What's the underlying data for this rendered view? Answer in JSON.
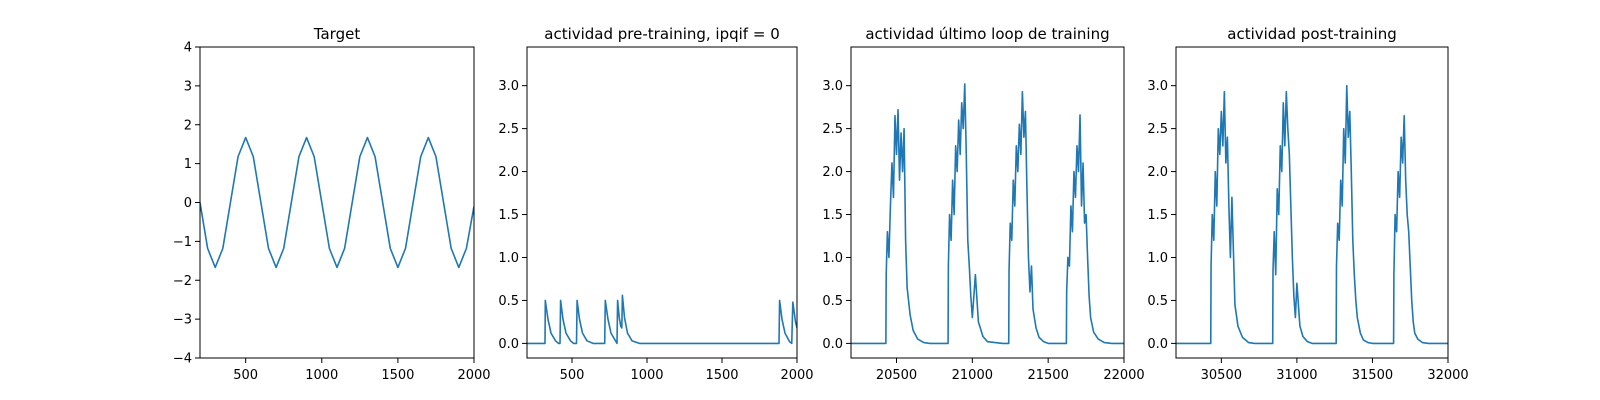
{
  "chart_data": [
    {
      "type": "line",
      "title": "Target",
      "xlim": [
        200,
        2000
      ],
      "ylim": [
        -4,
        4
      ],
      "xticks": [
        500,
        1000,
        1500,
        2000
      ],
      "yticks": [
        -4,
        -3,
        -2,
        -1,
        0,
        1,
        2,
        3,
        4
      ],
      "series": [
        {
          "color": "#1f77b4",
          "x": [
            200,
            250,
            300,
            350,
            400,
            450,
            500,
            550,
            600,
            650,
            700,
            750,
            800,
            850,
            900,
            950,
            1000,
            1050,
            1100,
            1150,
            1200,
            1250,
            1300,
            1350,
            1400,
            1450,
            1500,
            1550,
            1600,
            1650,
            1700,
            1750,
            1800,
            1850,
            1900,
            1950,
            2000
          ],
          "y": [
            0.0,
            -1.18,
            -1.67,
            -1.18,
            0.0,
            1.18,
            1.67,
            1.18,
            0.0,
            -1.18,
            -1.67,
            -1.18,
            0.0,
            1.18,
            1.67,
            1.18,
            0.0,
            -1.18,
            -1.67,
            -1.18,
            0.0,
            1.18,
            1.67,
            1.18,
            0.0,
            -1.18,
            -1.67,
            -1.18,
            0.0,
            1.18,
            1.67,
            1.18,
            0.0,
            -1.18,
            -1.67,
            -1.18,
            -0.1
          ]
        }
      ]
    },
    {
      "type": "line",
      "title": "actividad pre-training, ipqif = 0",
      "xlim": [
        200,
        2000
      ],
      "ylim": [
        -0.17,
        3.45
      ],
      "xticks": [
        500,
        1000,
        1500,
        2000
      ],
      "yticks": [
        0.0,
        0.5,
        1.0,
        1.5,
        2.0,
        2.5,
        3.0
      ],
      "series": [
        {
          "color": "#1f77b4",
          "x": [
            200,
            320,
            322,
            340,
            360,
            390,
            410,
            420,
            424,
            440,
            460,
            490,
            510,
            530,
            534,
            550,
            570,
            600,
            640,
            700,
            718,
            722,
            740,
            760,
            790,
            800,
            804,
            815,
            825,
            832,
            836,
            850,
            870,
            900,
            950,
            1000,
            1880,
            1884,
            1900,
            1920,
            1950,
            1965,
            1972,
            1990,
            2000
          ],
          "y": [
            0.0,
            0.0,
            0.5,
            0.28,
            0.12,
            0.03,
            0.0,
            0.0,
            0.5,
            0.28,
            0.12,
            0.03,
            0.0,
            0.0,
            0.5,
            0.28,
            0.12,
            0.03,
            0.0,
            0.0,
            0.0,
            0.5,
            0.28,
            0.12,
            0.03,
            0.0,
            0.5,
            0.3,
            0.2,
            0.18,
            0.56,
            0.3,
            0.12,
            0.03,
            0.0,
            0.0,
            0.0,
            0.5,
            0.28,
            0.12,
            0.02,
            0.0,
            0.48,
            0.25,
            0.18
          ]
        }
      ]
    },
    {
      "type": "line",
      "title": "actividad último loop de training",
      "xlim": [
        20200,
        22000
      ],
      "ylim": [
        -0.17,
        3.45
      ],
      "xticks": [
        20500,
        21000,
        21500,
        22000
      ],
      "yticks": [
        0.0,
        0.5,
        1.0,
        1.5,
        2.0,
        2.5,
        3.0
      ],
      "series": [
        {
          "color": "#1f77b4",
          "x": [
            20200,
            20430,
            20432,
            20440,
            20450,
            20460,
            20470,
            20480,
            20490,
            20500,
            20510,
            20520,
            20530,
            20540,
            20550,
            20560,
            20570,
            20590,
            20610,
            20640,
            20680,
            20720,
            20800,
            20840,
            20842,
            20850,
            20860,
            20870,
            20880,
            20890,
            20900,
            20910,
            20920,
            20930,
            20940,
            20950,
            20960,
            20970,
            20980,
            20990,
            21000,
            21020,
            21040,
            21070,
            21100,
            21200,
            21240,
            21242,
            21250,
            21260,
            21270,
            21280,
            21290,
            21300,
            21310,
            21320,
            21330,
            21340,
            21350,
            21360,
            21370,
            21380,
            21390,
            21400,
            21420,
            21440,
            21470,
            21500,
            21600,
            21620,
            21622,
            21630,
            21640,
            21650,
            21660,
            21670,
            21680,
            21690,
            21700,
            21710,
            21720,
            21730,
            21740,
            21750,
            21760,
            21770,
            21780,
            21800,
            21830,
            21870,
            21920,
            22000
          ],
          "y": [
            0.0,
            0.0,
            0.8,
            1.3,
            1.0,
            1.6,
            2.1,
            1.7,
            2.65,
            2.2,
            2.72,
            1.9,
            2.45,
            2.0,
            2.5,
            1.2,
            0.65,
            0.33,
            0.15,
            0.05,
            0.01,
            0.0,
            0.0,
            0.0,
            0.9,
            1.5,
            1.2,
            1.9,
            1.5,
            2.3,
            2.0,
            2.6,
            2.2,
            2.8,
            2.5,
            3.02,
            2.2,
            1.2,
            0.9,
            0.55,
            0.3,
            0.8,
            0.25,
            0.08,
            0.02,
            0.0,
            0.0,
            0.85,
            1.4,
            1.2,
            1.9,
            1.6,
            2.3,
            2.0,
            2.55,
            2.2,
            2.93,
            2.4,
            2.7,
            1.8,
            1.0,
            0.6,
            0.9,
            0.4,
            0.18,
            0.07,
            0.02,
            0.0,
            0.0,
            0.0,
            0.6,
            1.0,
            0.9,
            1.6,
            1.3,
            2.0,
            1.7,
            2.3,
            2.0,
            2.66,
            1.6,
            2.1,
            1.4,
            1.5,
            1.0,
            0.55,
            0.3,
            0.13,
            0.05,
            0.01,
            0.0,
            0.0
          ]
        }
      ]
    },
    {
      "type": "line",
      "title": "actividad post-training",
      "xlim": [
        30200,
        32000
      ],
      "ylim": [
        -0.17,
        3.45
      ],
      "xticks": [
        30500,
        31000,
        31500,
        32000
      ],
      "yticks": [
        0.0,
        0.5,
        1.0,
        1.5,
        2.0,
        2.5,
        3.0
      ],
      "series": [
        {
          "color": "#1f77b4",
          "x": [
            30200,
            30430,
            30432,
            30440,
            30450,
            30460,
            30470,
            30480,
            30490,
            30500,
            30510,
            30520,
            30530,
            30540,
            30550,
            30560,
            30570,
            30590,
            30610,
            30640,
            30680,
            30720,
            30800,
            30840,
            30842,
            30850,
            30860,
            30870,
            30880,
            30890,
            30900,
            30910,
            30920,
            30930,
            30940,
            30950,
            30960,
            30970,
            30980,
            30990,
            31000,
            31020,
            31040,
            31070,
            31100,
            31200,
            31260,
            31262,
            31270,
            31280,
            31290,
            31300,
            31310,
            31320,
            31330,
            31340,
            31350,
            31360,
            31370,
            31380,
            31390,
            31400,
            31420,
            31440,
            31470,
            31500,
            31600,
            31640,
            31642,
            31650,
            31660,
            31670,
            31680,
            31690,
            31700,
            31710,
            31720,
            31730,
            31740,
            31750,
            31760,
            31770,
            31780,
            31800,
            31830,
            31870,
            31920,
            32000
          ],
          "y": [
            0.0,
            0.0,
            0.9,
            1.5,
            1.2,
            2.0,
            1.6,
            2.5,
            2.2,
            2.7,
            2.3,
            2.93,
            2.1,
            2.4,
            1.6,
            1.0,
            1.7,
            0.45,
            0.2,
            0.07,
            0.01,
            0.0,
            0.0,
            0.0,
            0.85,
            1.3,
            0.8,
            1.8,
            1.5,
            2.3,
            2.0,
            2.8,
            2.3,
            2.93,
            2.5,
            2.2,
            1.6,
            1.0,
            0.55,
            0.3,
            0.7,
            0.2,
            0.08,
            0.02,
            0.0,
            0.0,
            0.0,
            0.9,
            1.4,
            1.2,
            1.9,
            1.6,
            2.5,
            2.1,
            3.0,
            2.4,
            2.7,
            2.0,
            1.2,
            0.8,
            0.5,
            0.3,
            0.12,
            0.04,
            0.01,
            0.0,
            0.0,
            0.0,
            0.8,
            1.5,
            1.3,
            2.0,
            1.7,
            2.4,
            2.1,
            2.65,
            1.9,
            1.5,
            1.3,
            0.9,
            0.5,
            0.25,
            0.12,
            0.05,
            0.01,
            0.0,
            0.0,
            0.0
          ]
        }
      ]
    }
  ]
}
